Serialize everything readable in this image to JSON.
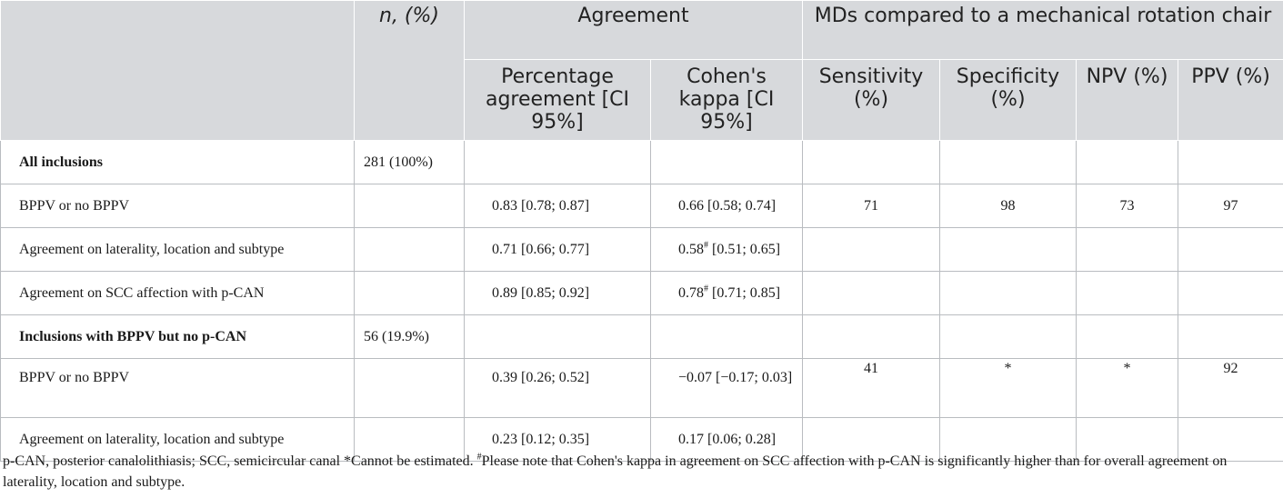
{
  "header": {
    "n_pct": "n, (%)",
    "agreement": "Agreement",
    "mds": "MDs compared to a mechanical rotation chair",
    "pct_agreement": "Percentage agreement [CI 95%]",
    "kappa": "Cohen's kappa [CI 95%]",
    "sensitivity": "Sensitivity (%)",
    "specificity": "Specificity (%)",
    "npv": "NPV (%)",
    "ppv": "PPV (%)"
  },
  "rows": [
    {
      "label": "All inclusions",
      "n": "281 (100%)",
      "pa": "",
      "kappa": "",
      "kappa_sup": "",
      "kappa_rest": "",
      "sens": "",
      "spec": "",
      "npv": "",
      "ppv": ""
    },
    {
      "label": "BPPV or no BPPV",
      "n": "",
      "pa": "0.83 [0.78; 0.87]",
      "kappa": "0.66 [0.58; 0.74]",
      "kappa_sup": "",
      "kappa_rest": "",
      "sens": "71",
      "spec": "98",
      "npv": "73",
      "ppv": "97"
    },
    {
      "label": "Agreement on laterality, location and subtype",
      "n": "",
      "pa": "0.71 [0.66; 0.77]",
      "kappa": "0.58",
      "kappa_sup": "#",
      "kappa_rest": " [0.51; 0.65]",
      "sens": "",
      "spec": "",
      "npv": "",
      "ppv": ""
    },
    {
      "label": "Agreement on SCC affection with p-CAN",
      "n": "",
      "pa": "0.89 [0.85; 0.92]",
      "kappa": "0.78",
      "kappa_sup": "#",
      "kappa_rest": " [0.71; 0.85]",
      "sens": "",
      "spec": "",
      "npv": "",
      "ppv": ""
    },
    {
      "label": "Inclusions with BPPV but no p-CAN",
      "n": "56 (19.9%)",
      "pa": "",
      "kappa": "",
      "kappa_sup": "",
      "kappa_rest": "",
      "sens": "",
      "spec": "",
      "npv": "",
      "ppv": ""
    },
    {
      "label": "BPPV or no BPPV",
      "n": "",
      "pa": "0.39 [0.26; 0.52]",
      "kappa": "−0.07 [−0.17; 0.03]",
      "kappa_sup": "",
      "kappa_rest": "",
      "sens": "41",
      "spec": "*",
      "npv": "*",
      "ppv": "92"
    },
    {
      "label": "Agreement on laterality, location and subtype",
      "n": "",
      "pa": "0.23 [0.12; 0.35]",
      "kappa": "0.17 [0.06; 0.28]",
      "kappa_sup": "",
      "kappa_rest": "",
      "sens": "",
      "spec": "",
      "npv": "",
      "ppv": ""
    }
  ],
  "footnote": {
    "part1": "p-CAN, posterior canalolithiasis; SCC, semicircular canal *Cannot be estimated. ",
    "sup": "#",
    "part2": "Please note that Cohen's kappa in agreement on SCC affection with p-CAN is significantly higher than for overall agreement on laterality, location and subtype."
  }
}
